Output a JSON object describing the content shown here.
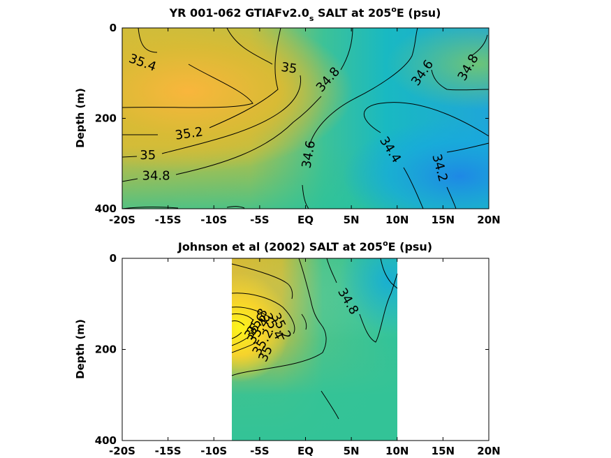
{
  "chart_data": [
    {
      "type": "heatmap",
      "title": {
        "pre": "YR 001-062 GTIAFv2.0",
        "sub": "s",
        "mid": " SALT at 205",
        "sup": "o",
        "post": "E (psu)"
      },
      "xlabel": "",
      "ylabel": "Depth (m)",
      "xlim": [
        -20,
        20
      ],
      "ylim": [
        0,
        400
      ],
      "y_reversed": true,
      "x_ticks": [
        -20,
        -15,
        -10,
        -5,
        0,
        5,
        10,
        15,
        20
      ],
      "x_tick_labels": [
        "-20S",
        "-15S",
        "-10S",
        "-5S",
        "EQ",
        "5N",
        "10N",
        "15N",
        "20N"
      ],
      "y_ticks": [
        0,
        200,
        400
      ],
      "y_tick_labels": [
        "0",
        "200",
        "400"
      ],
      "data_xrange": [
        -20,
        20
      ],
      "colormap": "parula",
      "clim": [
        34.0,
        35.8
      ],
      "contour_labels": [
        {
          "text": "35.4",
          "x": -17.8,
          "y": 78,
          "angle": 20
        },
        {
          "text": "35",
          "x": -1.8,
          "y": 90,
          "angle": 8
        },
        {
          "text": "34.8",
          "x": 2.5,
          "y": 115,
          "angle": -48
        },
        {
          "text": "34.6",
          "x": 12.8,
          "y": 100,
          "angle": -55
        },
        {
          "text": "34.8",
          "x": 17.8,
          "y": 88,
          "angle": -60
        },
        {
          "text": "35.2",
          "x": -12.7,
          "y": 235,
          "angle": -8
        },
        {
          "text": "35",
          "x": -17.2,
          "y": 283,
          "angle": 0
        },
        {
          "text": "34.8",
          "x": -16.3,
          "y": 328,
          "angle": 0
        },
        {
          "text": "34.6",
          "x": 0.4,
          "y": 280,
          "angle": -80
        },
        {
          "text": "34.4",
          "x": 9.2,
          "y": 270,
          "angle": 58
        },
        {
          "text": "34.2",
          "x": 14.6,
          "y": 310,
          "angle": 75
        }
      ]
    },
    {
      "type": "heatmap",
      "title": {
        "pre": "Johnson et al (2002) SALT at 205",
        "sub": "",
        "mid": "",
        "sup": "o",
        "post": "E (psu)"
      },
      "xlabel": "",
      "ylabel": "Depth (m)",
      "xlim": [
        -20,
        20
      ],
      "ylim": [
        0,
        400
      ],
      "y_reversed": true,
      "x_ticks": [
        -20,
        -15,
        -10,
        -5,
        0,
        5,
        10,
        15,
        20
      ],
      "x_tick_labels": [
        "-20S",
        "-15S",
        "-10S",
        "-5S",
        "EQ",
        "5N",
        "10N",
        "15N",
        "20N"
      ],
      "y_ticks": [
        0,
        200,
        400
      ],
      "y_tick_labels": [
        "0",
        "200",
        "400"
      ],
      "data_xrange": [
        -8,
        10
      ],
      "colormap": "parula",
      "clim": [
        34.0,
        35.8
      ],
      "contour_labels": [
        {
          "text": "34.8",
          "x": 4.6,
          "y": 95,
          "angle": 60
        },
        {
          "text": "35",
          "x": -4.3,
          "y": 210,
          "angle": -65
        },
        {
          "text": "35.2",
          "x": -4.6,
          "y": 185,
          "angle": -60
        },
        {
          "text": "35.4",
          "x": -5.1,
          "y": 160,
          "angle": -55
        },
        {
          "text": "35.6",
          "x": -5.4,
          "y": 150,
          "angle": -55
        },
        {
          "text": "35.8",
          "x": -5.2,
          "y": 140,
          "angle": -60
        },
        {
          "text": "35.4",
          "x": -3.6,
          "y": 150,
          "angle": 60
        },
        {
          "text": "35.2",
          "x": -2.7,
          "y": 150,
          "angle": 62
        }
      ]
    }
  ]
}
